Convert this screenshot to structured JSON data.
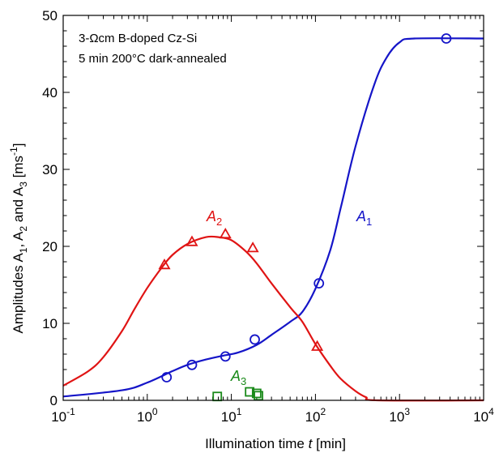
{
  "chart_data": {
    "type": "scatter",
    "title": "",
    "xlabel": {
      "prefix": "Illumination time ",
      "var": "t",
      "suffix": " [min]"
    },
    "ylabel": "Amplitudes A1, A2 and A3 [ms-1]",
    "xscale": "log",
    "xlim": [
      0.1,
      10000
    ],
    "ylim": [
      0,
      50
    ],
    "grid": false,
    "x_ticks": [
      {
        "value": 0.1,
        "base": "10",
        "exp": "-1"
      },
      {
        "value": 1,
        "base": "10",
        "exp": "0"
      },
      {
        "value": 10,
        "base": "10",
        "exp": "1"
      },
      {
        "value": 100,
        "base": "10",
        "exp": "2"
      },
      {
        "value": 1000,
        "base": "10",
        "exp": "3"
      },
      {
        "value": 10000,
        "base": "10",
        "exp": "4"
      }
    ],
    "y_ticks": [
      0,
      10,
      20,
      30,
      40,
      50
    ],
    "annotations": [
      "3-Ωcm B-doped Cz-Si",
      "5 min 200°C dark-annealed"
    ],
    "series": [
      {
        "name": "A1",
        "label_base": "A",
        "label_sub": "1",
        "color": "#1515c8",
        "marker": "circle",
        "points": [
          [
            1.7,
            3.0
          ],
          [
            3.4,
            4.6
          ],
          [
            8.5,
            5.7
          ],
          [
            19,
            7.9
          ],
          [
            110,
            15.2
          ],
          [
            3600,
            47.0
          ]
        ],
        "fit": [
          [
            0.1,
            0.5
          ],
          [
            0.5,
            1.3
          ],
          [
            1,
            2.3
          ],
          [
            2,
            3.8
          ],
          [
            3,
            4.6
          ],
          [
            5,
            5.3
          ],
          [
            8,
            5.8
          ],
          [
            12,
            6.2
          ],
          [
            20,
            7.2
          ],
          [
            30,
            8.5
          ],
          [
            50,
            10.2
          ],
          [
            70,
            11.5
          ],
          [
            100,
            14.5
          ],
          [
            150,
            19.5
          ],
          [
            200,
            25
          ],
          [
            300,
            33
          ],
          [
            500,
            41
          ],
          [
            700,
            44.5
          ],
          [
            1000,
            46.5
          ],
          [
            1500,
            47
          ],
          [
            10000,
            47
          ]
        ]
      },
      {
        "name": "A2",
        "label_base": "A",
        "label_sub": "2",
        "color": "#e01414",
        "marker": "triangle",
        "points": [
          [
            1.6,
            17.6
          ],
          [
            3.4,
            20.6
          ],
          [
            8.5,
            21.6
          ],
          [
            18,
            19.8
          ],
          [
            105,
            7.0
          ]
        ],
        "fit": [
          [
            0.1,
            1.9
          ],
          [
            0.2,
            3.8
          ],
          [
            0.3,
            5.6
          ],
          [
            0.5,
            9
          ],
          [
            0.7,
            11.8
          ],
          [
            1,
            14.6
          ],
          [
            1.5,
            17.3
          ],
          [
            2,
            18.9
          ],
          [
            3,
            20.3
          ],
          [
            5,
            21.2
          ],
          [
            7,
            21.2
          ],
          [
            10,
            20.8
          ],
          [
            15,
            19.3
          ],
          [
            20,
            17.8
          ],
          [
            30,
            15.2
          ],
          [
            50,
            12.1
          ],
          [
            70,
            10.2
          ],
          [
            100,
            7.3
          ],
          [
            150,
            4.5
          ],
          [
            200,
            2.8
          ],
          [
            300,
            1.2
          ],
          [
            400,
            0.4
          ],
          [
            550,
            0
          ],
          [
            10000,
            0
          ]
        ]
      },
      {
        "name": "A3",
        "label_base": "A",
        "label_sub": "3",
        "color": "#1a8a1a",
        "marker": "square",
        "points": [
          [
            6.8,
            0.5
          ],
          [
            16.5,
            1.1
          ],
          [
            20,
            0.9
          ],
          [
            21,
            0.6
          ]
        ]
      }
    ]
  }
}
